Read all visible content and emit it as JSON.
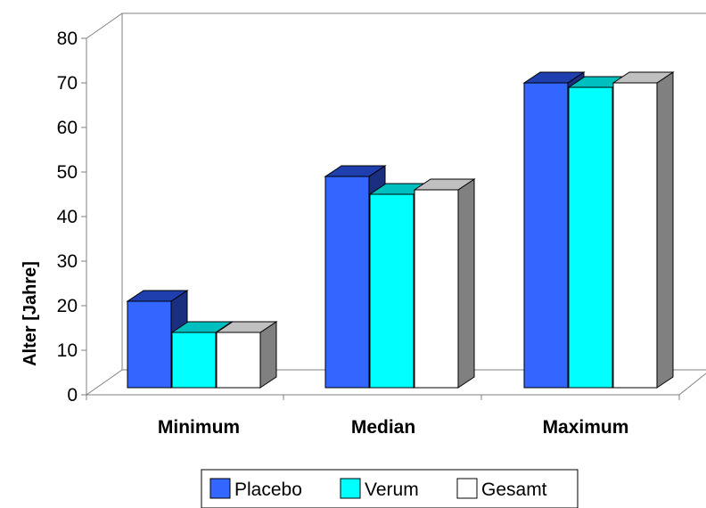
{
  "chart_data": {
    "type": "bar",
    "style": "3d-clustered-column",
    "categories": [
      "Minimum",
      "Median",
      "Maximum"
    ],
    "series": [
      {
        "name": "Placebo",
        "values": [
          21,
          49,
          70
        ],
        "color": "#3366ff",
        "top_color": "#1f3fae",
        "side_color": "#1a2f80"
      },
      {
        "name": "Verum",
        "values": [
          14,
          45,
          69
        ],
        "color": "#00ffff",
        "top_color": "#00bfbf",
        "side_color": "#009999"
      },
      {
        "name": "Gesamt",
        "values": [
          14,
          46,
          70
        ],
        "color": "#ffffff",
        "top_color": "#c0c0c0",
        "side_color": "#808080"
      }
    ],
    "xlabel": "",
    "ylabel": "Alter [Jahre]",
    "ylim": [
      0,
      80
    ],
    "yticks": [
      "0",
      "10",
      "20",
      "30",
      "40",
      "50",
      "60",
      "70",
      "80"
    ],
    "grid": false,
    "legend": "bottom"
  }
}
